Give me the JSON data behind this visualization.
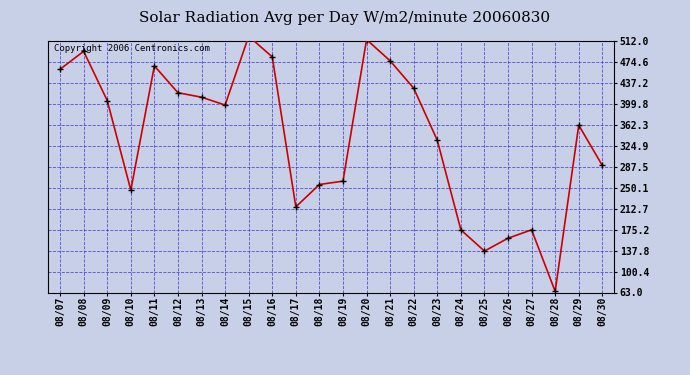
{
  "title": "Solar Radiation Avg per Day W/m2/minute 20060830",
  "copyright": "Copyright 2006 Centronics.com",
  "dates": [
    "08/07",
    "08/08",
    "08/09",
    "08/10",
    "08/11",
    "08/12",
    "08/13",
    "08/14",
    "08/15",
    "08/16",
    "08/17",
    "08/18",
    "08/19",
    "08/20",
    "08/21",
    "08/22",
    "08/23",
    "08/24",
    "08/25",
    "08/26",
    "08/27",
    "08/28",
    "08/29",
    "08/30"
  ],
  "values": [
    462,
    494,
    406,
    246,
    468,
    420,
    412,
    398,
    521,
    484,
    216,
    256,
    262,
    515,
    477,
    428,
    335,
    175,
    137,
    160,
    175,
    65,
    362,
    290
  ],
  "yticks": [
    63.0,
    100.4,
    137.8,
    175.2,
    212.7,
    250.1,
    287.5,
    324.9,
    362.3,
    399.8,
    437.2,
    474.6,
    512.0
  ],
  "line_color": "#cc0000",
  "marker_color": "#000000",
  "bg_color": "#c8d0e8",
  "plot_bg_color": "#c8d0e8",
  "grid_color": "#3333cc",
  "title_color": "#000000",
  "border_color": "#000000",
  "ylim": [
    63.0,
    512.0
  ],
  "title_fontsize": 11,
  "copyright_fontsize": 6.5
}
